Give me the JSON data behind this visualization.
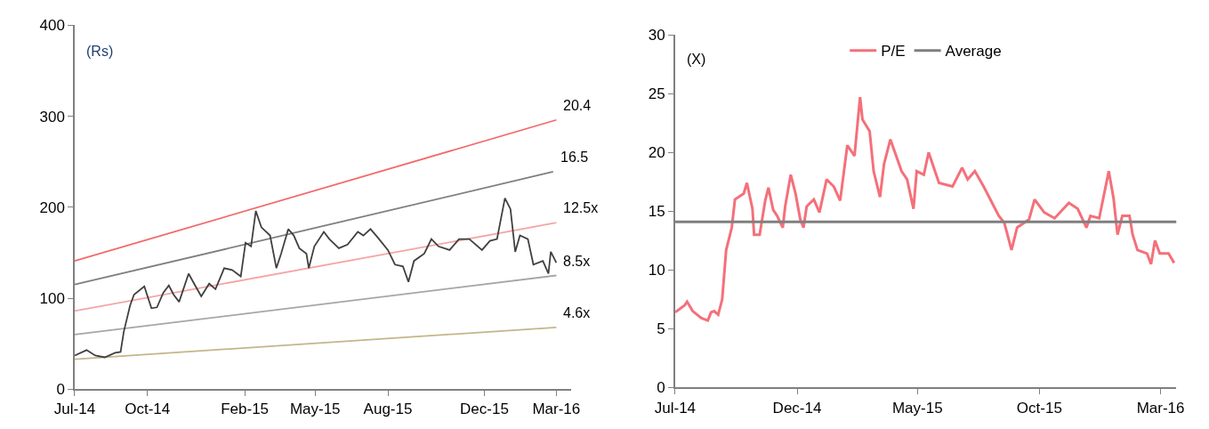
{
  "chart_data": [
    {
      "type": "line",
      "ylabel": "(Rs)",
      "xlim": [
        "2014-07-01",
        "2016-03-20"
      ],
      "ylim": [
        0,
        400
      ],
      "yticks": [
        0,
        100,
        200,
        300,
        400
      ],
      "xticks": [
        {
          "value": "2014-07-01",
          "label": "Jul-14"
        },
        {
          "value": "2014-10-01",
          "label": "Oct-14"
        },
        {
          "value": "2015-02-01",
          "label": "Feb-15"
        },
        {
          "value": "2015-05-01",
          "label": "May-15"
        },
        {
          "value": "2015-08-01",
          "label": "Aug-15"
        },
        {
          "value": "2015-12-01",
          "label": "Dec-15"
        },
        {
          "value": "2016-03-01",
          "label": "Mar-16"
        }
      ],
      "grid": false,
      "legend": false,
      "series": [
        {
          "name": "20.4",
          "color": "#f26b6b",
          "x": [
            "2014-07-01",
            "2016-03-01"
          ],
          "values": [
            141,
            296
          ]
        },
        {
          "name": "16.5",
          "color": "#7f7f7f",
          "x": [
            "2014-07-01",
            "2016-02-26"
          ],
          "values": [
            115,
            239
          ]
        },
        {
          "name": "12.5x",
          "color": "#f4a6a6",
          "x": [
            "2014-07-01",
            "2016-03-01"
          ],
          "values": [
            86,
            183
          ]
        },
        {
          "name": "8.5x",
          "color": "#a6a6a6",
          "x": [
            "2014-07-01",
            "2016-03-01"
          ],
          "values": [
            60,
            125
          ]
        },
        {
          "name": "4.6x",
          "color": "#c4b58a",
          "x": [
            "2014-07-01",
            "2016-03-01"
          ],
          "values": [
            33,
            68
          ]
        },
        {
          "color": "#404040",
          "x": [
            "2014-07-01",
            "2014-07-16",
            "2014-07-27",
            "2014-08-08",
            "2014-08-21",
            "2014-08-28",
            "2014-09-01",
            "2014-09-09",
            "2014-09-14",
            "2014-09-27",
            "2014-10-06",
            "2014-10-13",
            "2014-10-21",
            "2014-10-28",
            "2014-11-03",
            "2014-11-10",
            "2014-11-22",
            "2014-11-29",
            "2014-12-08",
            "2014-12-18",
            "2014-12-26",
            "2015-01-06",
            "2015-01-16",
            "2015-01-27",
            "2015-02-02",
            "2015-02-09",
            "2015-02-15",
            "2015-02-22",
            "2015-03-05",
            "2015-03-13",
            "2015-03-19",
            "2015-03-28",
            "2015-04-04",
            "2015-04-11",
            "2015-04-20",
            "2015-04-23",
            "2015-04-30",
            "2015-05-12",
            "2015-05-19",
            "2015-05-31",
            "2015-06-11",
            "2015-06-24",
            "2015-07-01",
            "2015-07-10",
            "2015-07-19",
            "2015-08-01",
            "2015-08-10",
            "2015-08-20",
            "2015-08-27",
            "2015-09-03",
            "2015-09-16",
            "2015-09-25",
            "2015-10-04",
            "2015-10-18",
            "2015-10-30",
            "2015-11-12",
            "2015-11-28",
            "2015-12-08",
            "2015-12-17",
            "2015-12-27",
            "2016-01-03",
            "2016-01-09",
            "2016-01-15",
            "2016-01-25",
            "2016-02-01",
            "2016-02-13",
            "2016-02-20",
            "2016-02-23",
            "2016-03-01"
          ],
          "values": [
            37,
            43,
            37,
            35,
            40,
            41,
            63,
            92,
            104,
            113,
            89,
            90,
            106,
            114,
            104,
            96,
            127,
            116,
            102,
            116,
            110,
            133,
            131,
            124,
            161,
            157,
            196,
            178,
            169,
            133,
            149,
            176,
            169,
            155,
            149,
            133,
            157,
            173,
            165,
            155,
            159,
            173,
            169,
            176,
            167,
            153,
            137,
            135,
            118,
            141,
            149,
            165,
            157,
            153,
            165,
            165,
            153,
            163,
            165,
            210,
            198,
            151,
            169,
            165,
            137,
            141,
            127,
            151,
            139
          ]
        }
      ]
    },
    {
      "type": "line",
      "ylabel": "(X)",
      "xlim": [
        "2014-07-01",
        "2016-03-21"
      ],
      "ylim": [
        0,
        30
      ],
      "yticks": [
        0,
        5,
        10,
        15,
        20,
        25,
        30
      ],
      "xticks": [
        {
          "value": "2014-07-01",
          "label": "Jul-14"
        },
        {
          "value": "2014-12-01",
          "label": "Dec-14"
        },
        {
          "value": "2015-05-01",
          "label": "May-15"
        },
        {
          "value": "2015-10-01",
          "label": "Oct-15"
        },
        {
          "value": "2016-03-01",
          "label": "Mar-16"
        }
      ],
      "grid": false,
      "legend": "top",
      "series": [
        {
          "name": "P/E",
          "color": "#f4707a",
          "x": [
            "2014-07-01",
            "2014-07-13",
            "2014-07-16",
            "2014-07-23",
            "2014-08-03",
            "2014-08-11",
            "2014-08-15",
            "2014-08-19",
            "2014-08-24",
            "2014-08-29",
            "2014-09-03",
            "2014-09-10",
            "2014-09-14",
            "2014-09-25",
            "2014-09-29",
            "2014-10-06",
            "2014-10-08",
            "2014-10-15",
            "2014-10-22",
            "2014-10-26",
            "2014-11-01",
            "2014-11-06",
            "2014-11-13",
            "2014-11-16",
            "2014-11-23",
            "2014-11-29",
            "2014-12-05",
            "2014-12-09",
            "2014-12-13",
            "2014-12-22",
            "2014-12-29",
            "2015-01-07",
            "2015-01-16",
            "2015-01-24",
            "2015-02-02",
            "2015-02-11",
            "2015-02-18",
            "2015-02-21",
            "2015-03-02",
            "2015-03-07",
            "2015-03-15",
            "2015-03-20",
            "2015-03-28",
            "2015-04-08",
            "2015-04-11",
            "2015-04-18",
            "2015-04-26",
            "2015-04-30",
            "2015-05-09",
            "2015-05-15",
            "2015-05-28",
            "2015-06-14",
            "2015-06-26",
            "2015-07-03",
            "2015-07-12",
            "2015-07-23",
            "2015-08-11",
            "2015-08-18",
            "2015-08-27",
            "2015-09-03",
            "2015-09-18",
            "2015-09-25",
            "2015-10-07",
            "2015-10-20",
            "2015-11-07",
            "2015-11-18",
            "2015-11-29",
            "2015-12-04",
            "2015-12-15",
            "2015-12-27",
            "2016-01-02",
            "2016-01-07",
            "2016-01-13",
            "2016-01-22",
            "2016-01-26",
            "2016-02-01",
            "2016-02-13",
            "2016-02-18",
            "2016-02-23",
            "2016-02-29",
            "2016-03-11",
            "2016-03-18"
          ],
          "values": [
            6.4,
            7.0,
            7.3,
            6.5,
            5.9,
            5.7,
            6.4,
            6.5,
            6.2,
            7.5,
            11.7,
            13.6,
            16,
            16.5,
            17.4,
            15.2,
            13,
            13,
            15.9,
            17,
            15.1,
            14.6,
            13.6,
            15.4,
            18.1,
            16.5,
            14.3,
            13.6,
            15.4,
            16,
            14.9,
            17.7,
            17.1,
            15.9,
            20.6,
            19.7,
            24.7,
            22.8,
            21.8,
            18.4,
            16.2,
            19,
            21.1,
            19,
            18.4,
            17.7,
            15.2,
            18.4,
            18.1,
            20,
            17.4,
            17.1,
            18.7,
            17.7,
            18.4,
            17.1,
            14.6,
            14,
            11.7,
            13.6,
            14.3,
            16,
            14.9,
            14.4,
            15.7,
            15.2,
            13.6,
            14.6,
            14.4,
            18.4,
            16.1,
            13,
            14.6,
            14.6,
            13,
            11.7,
            11.4,
            10.5,
            12.5,
            11.4,
            11.4,
            10.6
          ]
        },
        {
          "name": "Average",
          "color": "#7f7f7f",
          "x": [
            "2014-07-01",
            "2016-03-21"
          ],
          "values": [
            14.1,
            14.1
          ]
        }
      ]
    }
  ]
}
